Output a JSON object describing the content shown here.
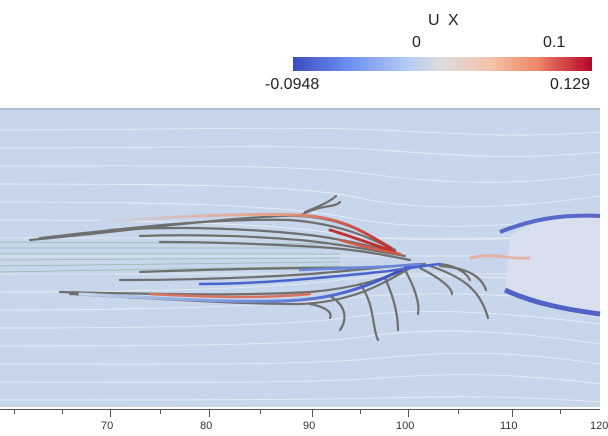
{
  "legend": {
    "title": "U X",
    "tick_zero": "0",
    "tick_high": "0.1",
    "min_label": "-0.0948",
    "max_label": "0.129",
    "colors": {
      "cold": "#3b4cc0",
      "neutral": "#dddcdc",
      "hot": "#b40426"
    }
  },
  "axis": {
    "ticks": [
      "70",
      "80",
      "90",
      "100",
      "110",
      "120"
    ]
  },
  "palette": {
    "background": "#c7d6ea",
    "streamline": "#eef2f8",
    "particle_path": "#6f6f6f"
  }
}
